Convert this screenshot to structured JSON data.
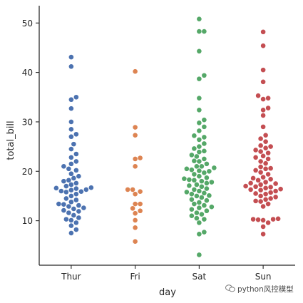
{
  "chart_data": {
    "type": "scatter",
    "style": "swarm",
    "xlabel": "day",
    "ylabel": "total_bill",
    "categories": [
      "Thur",
      "Fri",
      "Sat",
      "Sun"
    ],
    "ylim": [
      1.0,
      53.5
    ],
    "yticks": [
      10,
      20,
      30,
      40,
      50
    ],
    "grid": false,
    "series": [
      {
        "category": "Thur",
        "color": "#4c72b0",
        "values": [
          7.5,
          8.2,
          9.0,
          9.6,
          10.1,
          10.3,
          10.6,
          11.1,
          11.6,
          11.9,
          12.1,
          12.4,
          12.6,
          12.9,
          13.1,
          13.3,
          13.4,
          13.8,
          14.2,
          14.5,
          15.0,
          15.4,
          15.8,
          15.9,
          16.0,
          16.2,
          16.3,
          16.5,
          16.6,
          16.7,
          17.0,
          17.3,
          17.6,
          18.0,
          18.2,
          18.6,
          19.0,
          19.5,
          20.2,
          20.5,
          21.0,
          21.5,
          22.0,
          22.8,
          23.5,
          24.5,
          25.5,
          27.0,
          27.5,
          28.5,
          30.0,
          32.7,
          34.5,
          35.0,
          41.2,
          43.1
        ]
      },
      {
        "category": "Fri",
        "color": "#dd8452",
        "values": [
          5.8,
          8.6,
          10.1,
          11.5,
          12.0,
          12.5,
          13.4,
          13.4,
          15.4,
          15.9,
          16.3,
          16.3,
          21.0,
          22.5,
          22.7,
          27.3,
          28.9,
          40.2
        ]
      },
      {
        "category": "Sat",
        "color": "#55a868",
        "values": [
          3.1,
          7.3,
          7.7,
          9.6,
          10.3,
          10.5,
          11.0,
          11.3,
          11.6,
          12.0,
          12.3,
          12.6,
          12.8,
          13.1,
          13.4,
          13.7,
          14.1,
          14.3,
          14.7,
          15.0,
          15.1,
          15.4,
          15.6,
          15.8,
          16.0,
          16.3,
          16.5,
          16.9,
          17.1,
          17.3,
          17.6,
          17.8,
          18.0,
          18.2,
          18.3,
          18.5,
          18.7,
          19.0,
          19.4,
          19.7,
          20.0,
          20.1,
          20.3,
          20.5,
          20.7,
          21.0,
          21.0,
          21.5,
          22.0,
          22.1,
          22.5,
          23.0,
          23.3,
          23.9,
          24.1,
          24.6,
          25.0,
          25.6,
          26.4,
          26.9,
          27.2,
          28.2,
          29.0,
          29.8,
          30.4,
          32.4,
          34.8,
          38.7,
          39.4,
          44.3,
          48.3,
          48.3,
          50.8
        ]
      },
      {
        "category": "Sun",
        "color": "#c44e52",
        "values": [
          7.3,
          8.8,
          9.6,
          10.1,
          10.2,
          10.3,
          10.3,
          10.4,
          12.9,
          13.4,
          13.9,
          14.0,
          14.3,
          14.5,
          14.8,
          15.0,
          15.4,
          15.5,
          15.7,
          16.0,
          16.2,
          16.3,
          16.4,
          16.6,
          16.8,
          16.9,
          17.0,
          17.3,
          17.5,
          17.6,
          17.8,
          18.2,
          18.4,
          18.6,
          18.8,
          19.4,
          19.8,
          20.2,
          20.5,
          20.6,
          20.9,
          21.6,
          22.0,
          22.5,
          22.8,
          23.1,
          23.7,
          24.0,
          24.3,
          24.7,
          25.0,
          25.2,
          26.0,
          26.6,
          27.3,
          29.0,
          31.3,
          32.4,
          32.8,
          34.6,
          34.8,
          35.3,
          38.1,
          40.5,
          45.4,
          48.2
        ]
      }
    ]
  },
  "watermark": {
    "text": "python风控模型"
  }
}
